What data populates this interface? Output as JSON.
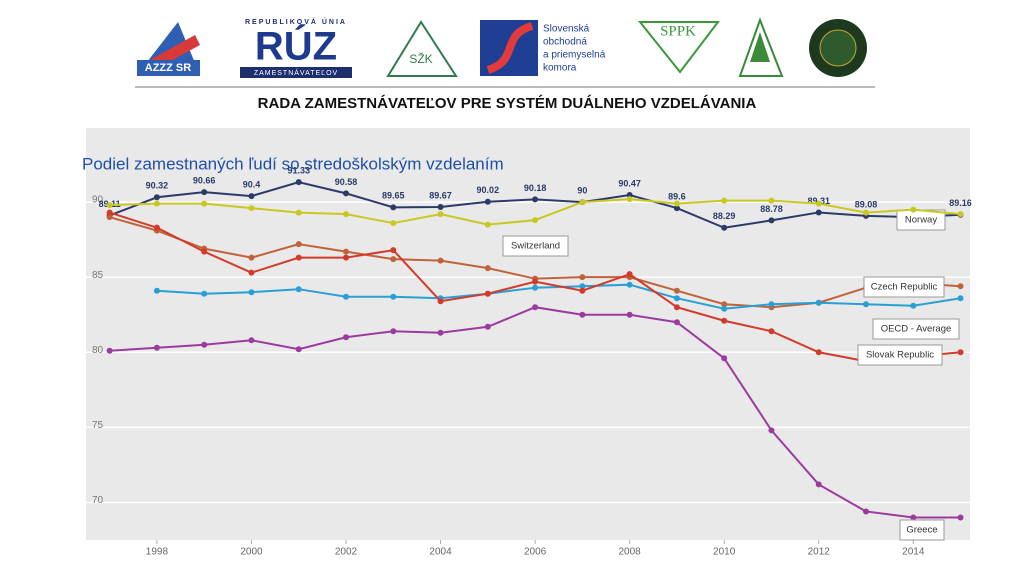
{
  "header": {
    "title": "RADA ZAMESTNÁVATEĽOV PRE SYSTÉM DUÁLNEHO VZDELÁVANIA",
    "logos": [
      "AZZZ SR",
      "REPUBLIKOVÁ ÚNIA",
      "RÚZ",
      "ZAMESTNÁVATEĽOV",
      "SŽK",
      "Slovenská",
      "obchodná",
      "a priemyselná",
      "komora",
      "SPPK"
    ]
  },
  "chart_data": {
    "type": "line",
    "title": "Podiel zamestnaných ľudí so stredoškolským vzdelaním",
    "x": [
      1997,
      1998,
      1999,
      2000,
      2001,
      2002,
      2003,
      2004,
      2005,
      2006,
      2007,
      2008,
      2009,
      2010,
      2011,
      2012,
      2013,
      2014,
      2015
    ],
    "xlim": [
      1996.5,
      2015.2
    ],
    "xticks": [
      1998,
      2000,
      2002,
      2004,
      2006,
      2008,
      2010,
      2012,
      2014
    ],
    "ylim": [
      67.5,
      94.8
    ],
    "yticks": [
      70,
      75,
      80,
      85,
      90
    ],
    "grid": true,
    "series": [
      {
        "name": "Norway",
        "color": "#2b3a67",
        "values": [
          89.11,
          90.32,
          90.66,
          90.4,
          91.33,
          90.58,
          89.65,
          89.67,
          90.02,
          90.18,
          90,
          90.47,
          89.6,
          88.29,
          88.78,
          89.31,
          89.08,
          89.0,
          89.16
        ],
        "value_labels": [
          "89.11",
          "90.32",
          "90.66",
          "90.4",
          "91.33",
          "90.58",
          "89.65",
          "89.67",
          "90.02",
          "90.18",
          "90",
          "90.47",
          "89.6",
          "88.29",
          "88.78",
          "89.31",
          "89.08",
          null,
          "89.16"
        ]
      },
      {
        "name": "Switzerland",
        "color": "#c8c824",
        "values": [
          89.8,
          89.9,
          89.9,
          89.6,
          89.3,
          89.2,
          88.6,
          89.2,
          88.5,
          88.8,
          90.0,
          90.2,
          89.9,
          90.1,
          90.1,
          89.9,
          89.3,
          89.5,
          89.2
        ]
      },
      {
        "name": "Czech Republic",
        "color": "#c0633a",
        "values": [
          89.0,
          88.1,
          86.9,
          86.3,
          87.2,
          86.7,
          86.2,
          86.1,
          85.6,
          84.9,
          85.0,
          85.0,
          84.1,
          83.2,
          83.0,
          83.3,
          84.3,
          84.6,
          84.4
        ]
      },
      {
        "name": "OECD - Average",
        "color": "#2a9fd6",
        "values": [
          null,
          84.1,
          83.9,
          84.0,
          84.2,
          83.7,
          83.7,
          83.6,
          83.9,
          84.3,
          84.4,
          84.5,
          83.6,
          82.9,
          83.2,
          83.3,
          83.2,
          83.1,
          83.6
        ]
      },
      {
        "name": "Slovak Republic",
        "color": "#d23a2a",
        "values": [
          89.3,
          88.3,
          86.7,
          85.3,
          86.3,
          86.3,
          86.8,
          83.4,
          83.9,
          84.7,
          84.1,
          85.2,
          83.0,
          82.1,
          81.4,
          80.0,
          79.4,
          79.7,
          80.0
        ]
      },
      {
        "name": "Greece",
        "color": "#9b3a9f",
        "values": [
          80.1,
          80.3,
          80.5,
          80.8,
          80.2,
          81.0,
          81.4,
          81.3,
          81.7,
          83.0,
          82.5,
          82.5,
          82.0,
          79.6,
          74.8,
          71.2,
          69.4,
          69.0,
          69.0
        ]
      }
    ]
  }
}
